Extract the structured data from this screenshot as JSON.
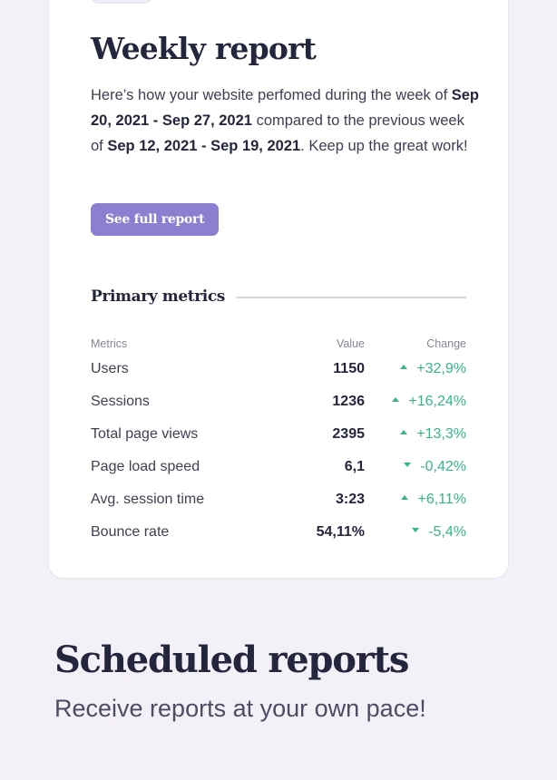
{
  "report": {
    "title": "Weekly report",
    "description": {
      "p1": "Here’s how your website perfomed during the week of",
      "range_current": "Sep 20, 2021 - Sep 27, 2021",
      "p2": "compared to the previous week of",
      "range_previous": "Sep 12, 2021 - Sep 19, 2021",
      "p3": ". Keep up the great work!"
    },
    "cta_label": "See full report"
  },
  "metrics": {
    "section_title": "Primary metrics",
    "headers": {
      "name": "Metrics",
      "value": "Value",
      "change": "Change"
    },
    "rows": [
      {
        "name": "Users",
        "value": "1150",
        "change": "+32,9%",
        "direction": "up"
      },
      {
        "name": "Sessions",
        "value": "1236",
        "change": "+16,24%",
        "direction": "up"
      },
      {
        "name": "Total page views",
        "value": "2395",
        "change": "+13,3%",
        "direction": "up"
      },
      {
        "name": "Page load speed",
        "value": "6,1",
        "change": "-0,42%",
        "direction": "down"
      },
      {
        "name": "Avg. session time",
        "value": "3:23",
        "change": "+6,11%",
        "direction": "up"
      },
      {
        "name": "Bounce rate",
        "value": "54,11%",
        "change": "-5,4%",
        "direction": "down"
      }
    ]
  },
  "scheduled": {
    "title": "Scheduled reports",
    "subtitle": "Receive reports at your own pace!"
  },
  "colors": {
    "background": "#f3f1f7",
    "accent": "#8c7fcf",
    "positive": "#35b58c",
    "heading": "#23263d"
  }
}
